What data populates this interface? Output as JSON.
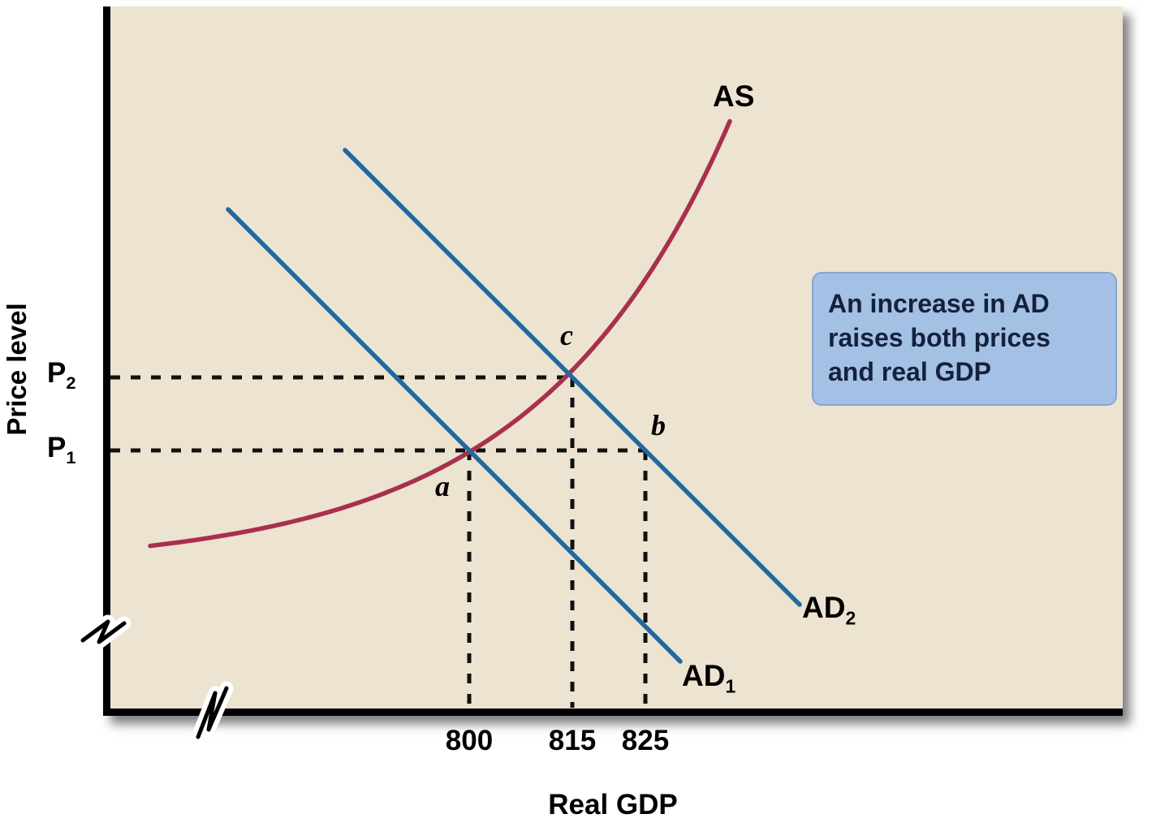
{
  "chart_data": {
    "type": "line",
    "title": "",
    "xlabel": "Real GDP",
    "ylabel": "Price level",
    "x_ticks": [
      {
        "value": 800,
        "label": "800"
      },
      {
        "value": 815,
        "label": "815"
      },
      {
        "value": 825,
        "label": "825"
      }
    ],
    "y_ticks": [
      {
        "id": "P2",
        "base": "P",
        "sub": "2"
      },
      {
        "id": "P1",
        "base": "P",
        "sub": "1"
      }
    ],
    "series": [
      {
        "name": "AS",
        "label_base": "AS",
        "label_sub": "",
        "kind": "supply-curve",
        "color": "#a92f4e"
      },
      {
        "name": "AD1",
        "label_base": "AD",
        "label_sub": "1",
        "kind": "demand-line",
        "color": "#2368a0",
        "passes_through": {
          "x": 800,
          "price": "P1"
        }
      },
      {
        "name": "AD2",
        "label_base": "AD",
        "label_sub": "2",
        "kind": "demand-line",
        "color": "#2368a0",
        "passes_through": {
          "x": 815,
          "price": "P2"
        }
      }
    ],
    "points": [
      {
        "label": "a",
        "x": 800,
        "price": "P1",
        "meaning": "equilibrium of AD1 and AS"
      },
      {
        "label": "b",
        "x": 825,
        "price": "P1",
        "meaning": "point on AD2 at price P1"
      },
      {
        "label": "c",
        "x": 815,
        "price": "P2",
        "meaning": "equilibrium of AD2 and AS"
      }
    ],
    "annotation": {
      "text": "An increase in AD raises both prices and real GDP"
    },
    "colors": {
      "plot_bg": "#ece3d1",
      "axis": "#000000",
      "dashed_guides": "#111111",
      "as_curve": "#a92f4e",
      "ad_lines": "#2368a0",
      "annotation_bg": "#a4c0e4",
      "annotation_text": "#14213d"
    },
    "layout_hints": {
      "grid": "off",
      "axis_breaks": [
        "x-axis",
        "y-axis"
      ],
      "legend": "labels on curves"
    }
  }
}
